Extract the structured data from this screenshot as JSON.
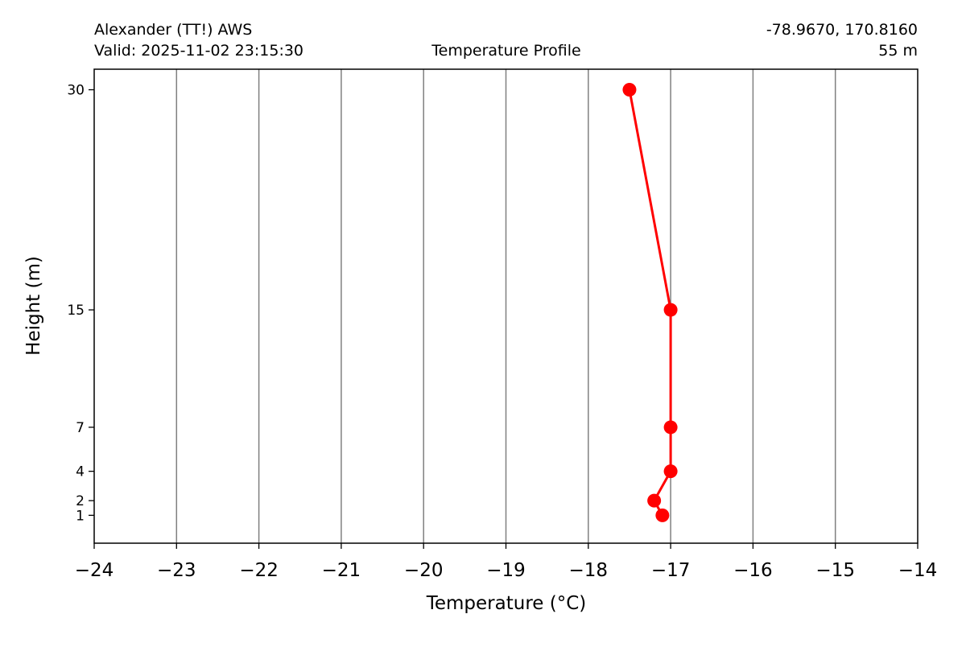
{
  "header": {
    "station": "Alexander (TT!) AWS",
    "valid": "Valid: 2025-11-02 23:15:30",
    "title": "Temperature Profile",
    "coords": "-78.9670, 170.8160",
    "elevation": "55 m"
  },
  "chart_data": {
    "type": "line",
    "xlabel": "Temperature (°C)",
    "ylabel": "Height (m)",
    "xlim": [
      -24,
      -14
    ],
    "ylim": [
      -0.9,
      31.4
    ],
    "x_ticks": [
      -24,
      -23,
      -22,
      -21,
      -20,
      -19,
      -18,
      -17,
      -16,
      -15,
      -14
    ],
    "x_tick_labels": [
      "−24",
      "−23",
      "−22",
      "−21",
      "−20",
      "−19",
      "−18",
      "−17",
      "−16",
      "−15",
      "−14"
    ],
    "y_ticks": [
      1,
      2,
      4,
      7,
      15,
      30
    ],
    "y_tick_labels": [
      "1",
      "2",
      "4",
      "7",
      "15",
      "30"
    ],
    "grid": "vertical",
    "series": [
      {
        "color": "#ff0000",
        "marker": "circle",
        "points": [
          {
            "height": 1,
            "temp": -17.1
          },
          {
            "height": 2,
            "temp": -17.2
          },
          {
            "height": 4,
            "temp": -17.0
          },
          {
            "height": 7,
            "temp": -17.0
          },
          {
            "height": 15,
            "temp": -17.0
          },
          {
            "height": 30,
            "temp": -17.5
          }
        ]
      }
    ],
    "grid_color": "#808080"
  }
}
